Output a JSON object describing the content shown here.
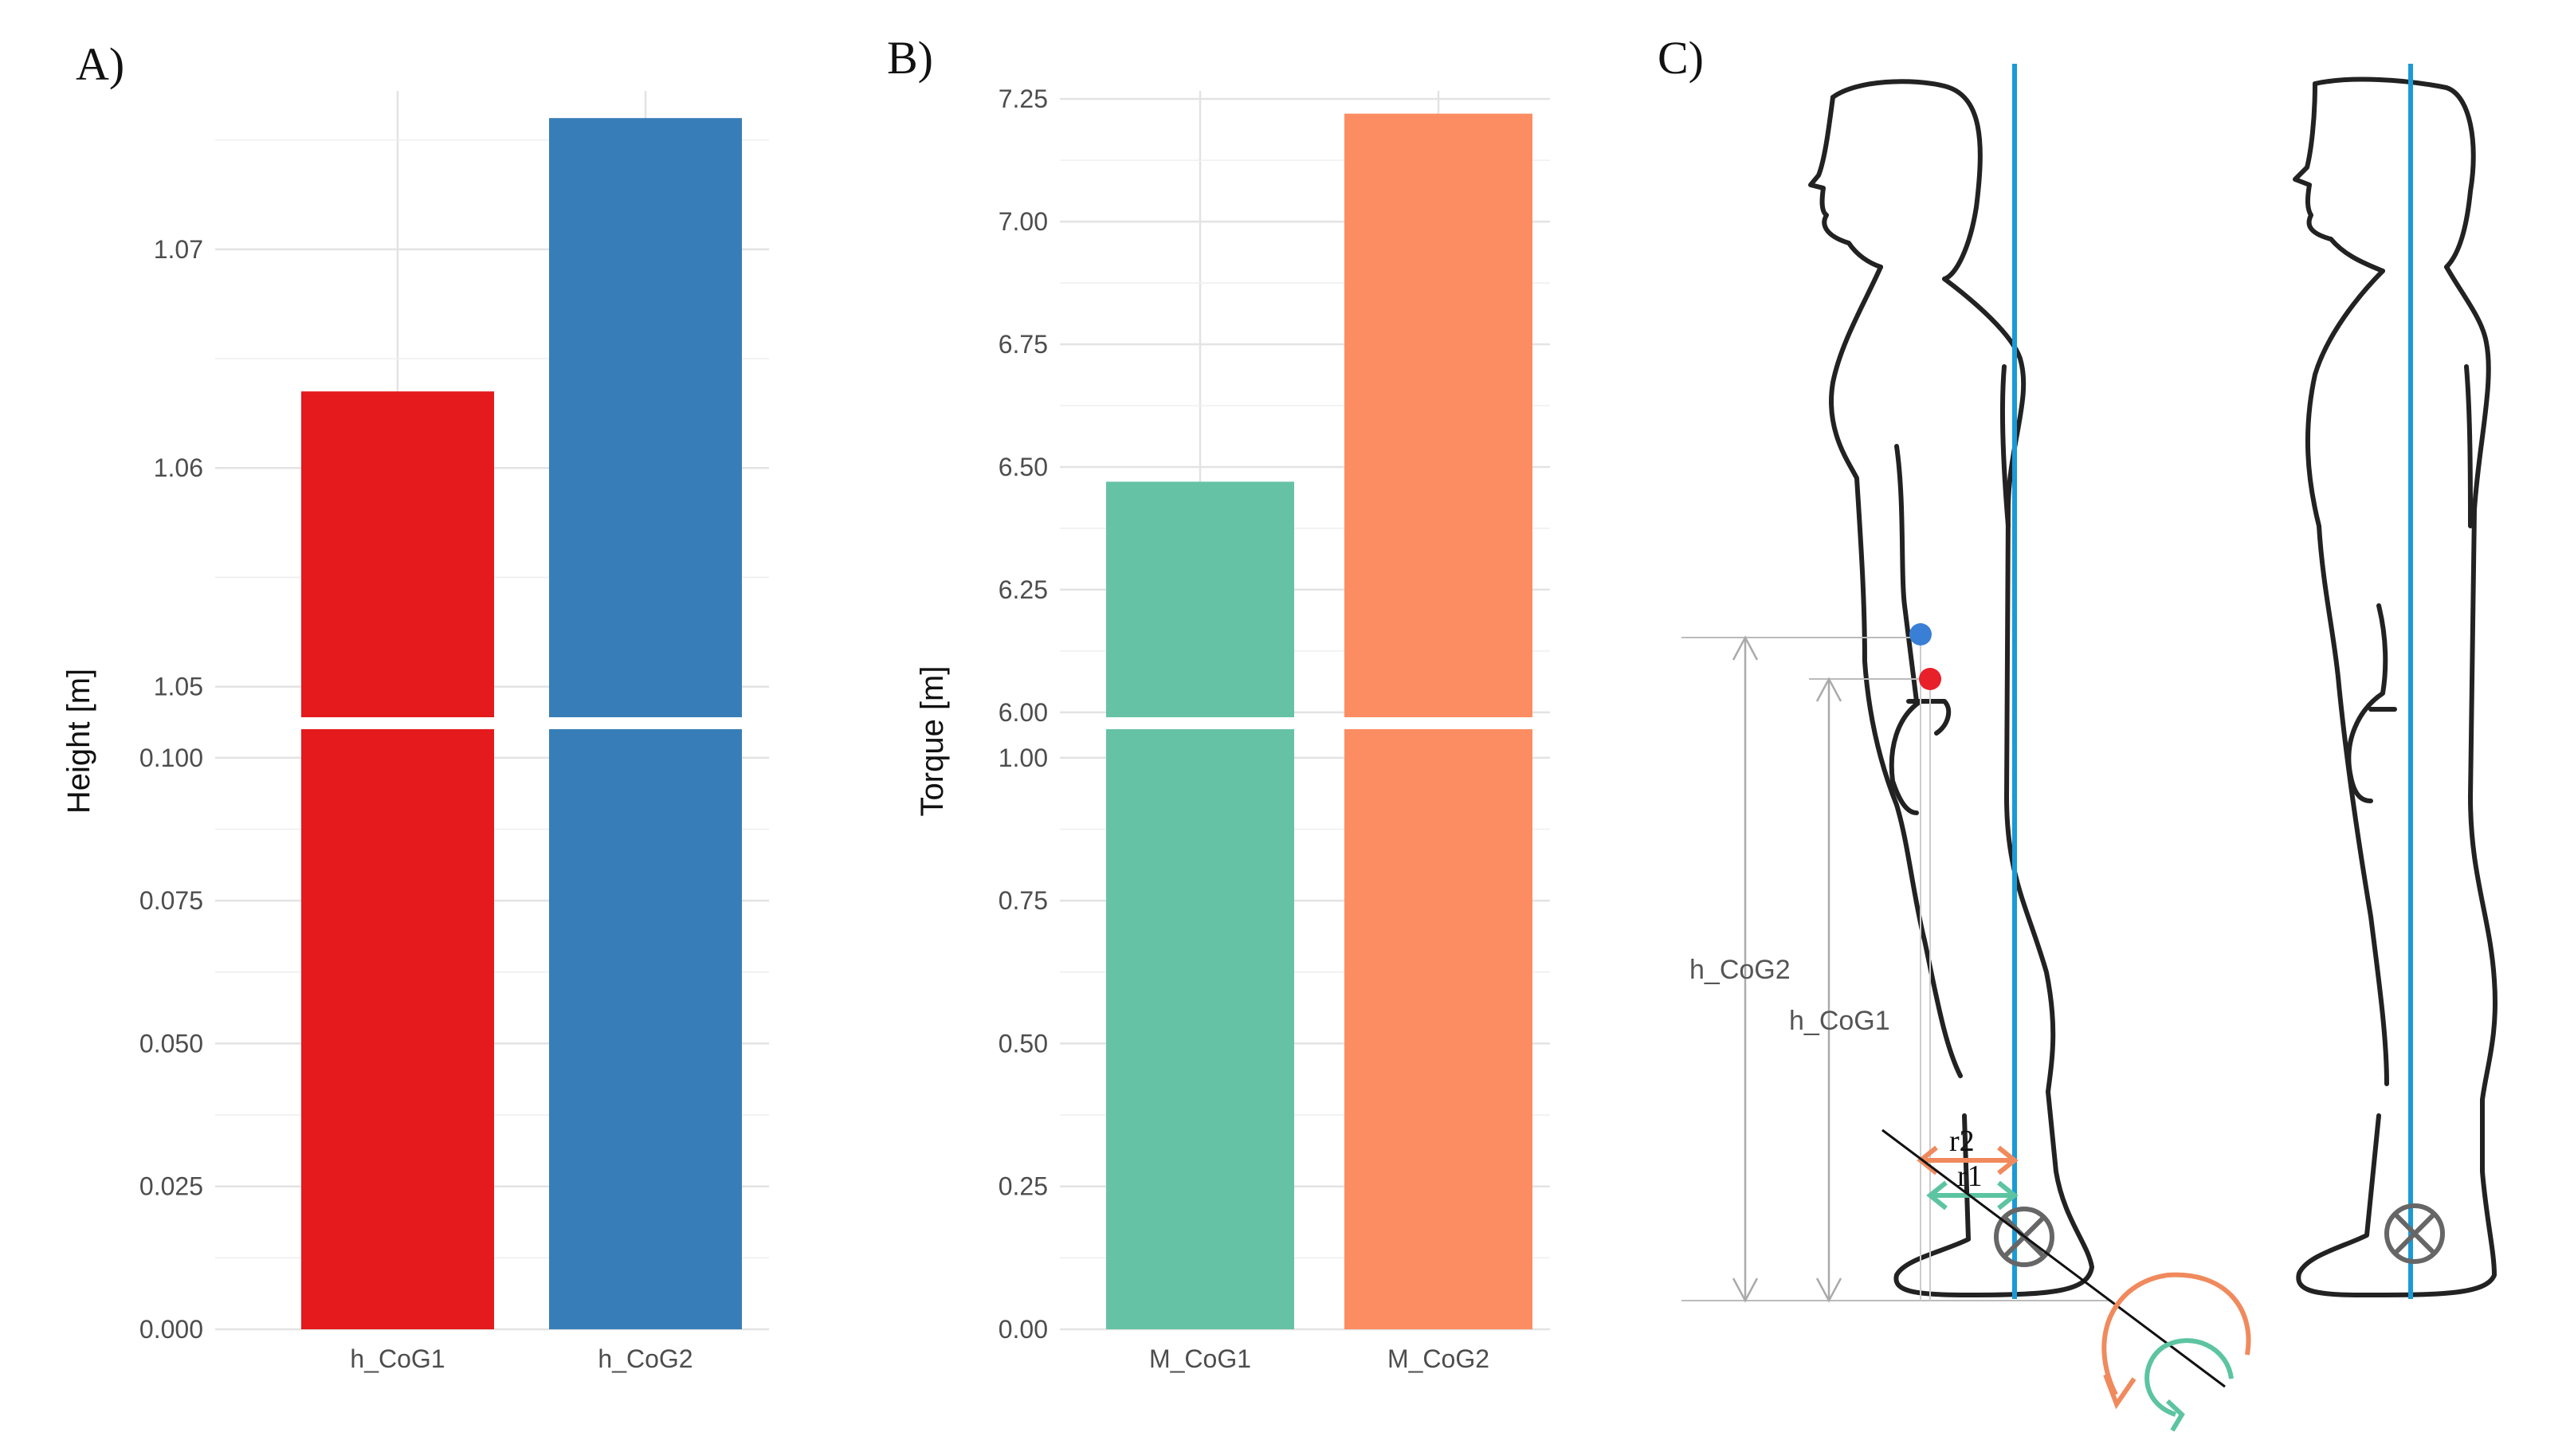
{
  "chart_data": [
    {
      "panel": "A)",
      "type": "bar",
      "broken_axis": true,
      "ylabel": "Height [m]",
      "categories": [
        "h_CoG1",
        "h_CoG2"
      ],
      "values": [
        1.0635,
        1.076
      ],
      "colors": [
        "#e41a1c",
        "#377eb8"
      ],
      "lower_ylim": [
        0,
        0.105
      ],
      "lower_ticks": [
        "0.000",
        "0.025",
        "0.050",
        "0.075",
        "0.100"
      ],
      "lower_tick_values": [
        0,
        0.025,
        0.05,
        0.075,
        0.1
      ],
      "upper_ylim": [
        1.0486,
        1.0771
      ],
      "upper_ticks": [
        "1.05",
        "1.06",
        "1.07"
      ],
      "upper_tick_values": [
        1.05,
        1.06,
        1.07
      ]
    },
    {
      "panel": "B)",
      "type": "bar",
      "broken_axis": true,
      "ylabel": "Torque [m]",
      "categories": [
        "M_CoG1",
        "M_CoG2"
      ],
      "values": [
        6.47,
        7.22
      ],
      "colors": [
        "#66c2a5",
        "#fc8d62"
      ],
      "lower_ylim": [
        0,
        1.05
      ],
      "lower_ticks": [
        "0.00",
        "0.25",
        "0.50",
        "0.75",
        "1.00"
      ],
      "lower_tick_values": [
        0,
        0.25,
        0.5,
        0.75,
        1.0
      ],
      "upper_ylim": [
        5.99,
        7.26
      ],
      "upper_ticks": [
        "6.00",
        "6.25",
        "6.50",
        "6.75",
        "7.00",
        "7.25"
      ],
      "upper_tick_values": [
        6.0,
        6.25,
        6.5,
        6.75,
        7.0,
        7.25
      ]
    }
  ],
  "diagram": {
    "panel": "C)",
    "labels": {
      "h_cog2": "h_CoG2",
      "h_cog1": "h_CoG1",
      "r2": "r2",
      "r1": "r1"
    },
    "colors": {
      "cog2_point": "#3a7fd6",
      "cog1_point": "#e8202a",
      "gravity_line": "#1a9ad6",
      "r2_arrow": "#f08a5d",
      "r1_arrow": "#5cc4a0"
    }
  }
}
